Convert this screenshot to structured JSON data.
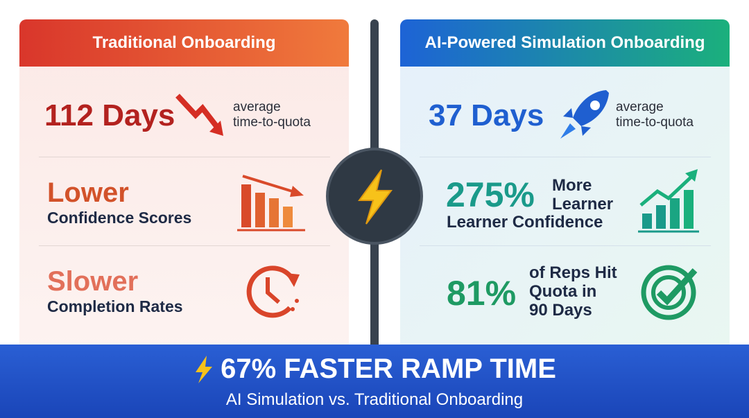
{
  "left": {
    "header": "Traditional Onboarding",
    "rows": [
      {
        "stat": "112 Days",
        "note": [
          "average",
          "time-to-quota"
        ]
      },
      {
        "stat": "Lower",
        "caption": "Confidence Scores"
      },
      {
        "stat": "Slower",
        "caption": "Completion Rates"
      }
    ]
  },
  "right": {
    "header": "AI-Powered Simulation Onboarding",
    "rows": [
      {
        "stat": "37 Days",
        "note": [
          "average",
          "time-to-quota"
        ]
      },
      {
        "stat": "275%",
        "note": [
          "More",
          "Learner"
        ],
        "caption": "Learner Confidence"
      },
      {
        "stat": "81%",
        "note": [
          "of Reps Hit",
          "Quota in",
          "90 Days"
        ]
      }
    ]
  },
  "banner": {
    "title": "67% FASTER RAMP TIME",
    "subtitle": "AI Simulation vs. Traditional Onboarding"
  }
}
